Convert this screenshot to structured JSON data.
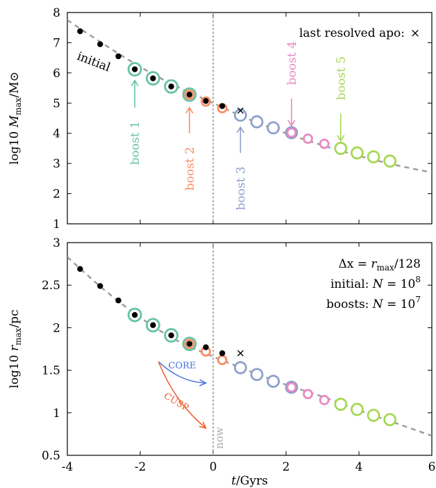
{
  "chart_data": [
    {
      "type": "scatter",
      "panel": "top",
      "xlim": [
        -4,
        6
      ],
      "ylim": [
        1,
        8
      ],
      "yticks": [
        "1",
        "2",
        "3",
        "4",
        "5",
        "6",
        "7",
        "8"
      ],
      "ylabel": "log10 Mmax/M⊙",
      "ylabel_parts": {
        "prefix": "log10 ",
        "var": "M",
        "sub": "max",
        "suffix": "/M⊙"
      },
      "now_x": 0,
      "fit_curve": [
        [
          -4.0,
          7.75
        ],
        [
          -3.0,
          6.95
        ],
        [
          -2.0,
          6.2
        ],
        [
          -1.0,
          5.55
        ],
        [
          0.0,
          5.0
        ],
        [
          1.0,
          4.45
        ],
        [
          2.0,
          4.0
        ],
        [
          3.0,
          3.6
        ],
        [
          4.0,
          3.25
        ],
        [
          5.0,
          2.95
        ],
        [
          6.0,
          2.7
        ]
      ],
      "initial": [
        [
          -3.65,
          7.38
        ],
        [
          -3.1,
          6.95
        ],
        [
          -2.6,
          6.55
        ],
        [
          -2.15,
          6.12
        ],
        [
          -1.65,
          5.82
        ],
        [
          -1.15,
          5.55
        ],
        [
          -0.65,
          5.28
        ],
        [
          -0.2,
          5.07
        ],
        [
          0.25,
          4.9
        ]
      ],
      "last_resolved_apo": [
        0.75,
        4.75
      ],
      "boosts": [
        {
          "name": "boost 1",
          "color": "#66c2a5",
          "ring": 9,
          "points": [
            [
              -2.15,
              6.12
            ],
            [
              -1.65,
              5.82
            ],
            [
              -1.15,
              5.55
            ],
            [
              -0.65,
              5.28
            ]
          ]
        },
        {
          "name": "boost 2",
          "color": "#fc8d62",
          "ring": 6,
          "points": [
            [
              -0.65,
              5.28
            ],
            [
              -0.2,
              5.05
            ],
            [
              0.25,
              4.83
            ],
            [
              0.75,
              4.6
            ]
          ]
        },
        {
          "name": "boost 3",
          "color": "#8da0cb",
          "ring": 8,
          "points": [
            [
              0.75,
              4.6
            ],
            [
              1.2,
              4.38
            ],
            [
              1.65,
              4.18
            ],
            [
              2.15,
              4.02
            ]
          ]
        },
        {
          "name": "boost 4",
          "color": "#e78ac3",
          "ring": 6,
          "points": [
            [
              2.15,
              4.02
            ],
            [
              2.6,
              3.82
            ],
            [
              3.05,
              3.65
            ],
            [
              3.5,
              3.5
            ]
          ]
        },
        {
          "name": "boost 5",
          "color": "#a6d854",
          "ring": 8,
          "points": [
            [
              3.5,
              3.5
            ],
            [
              3.95,
              3.35
            ],
            [
              4.4,
              3.22
            ],
            [
              4.85,
              3.08
            ]
          ]
        }
      ],
      "annotations": {
        "legend_text": "last resolved apo:",
        "legend_marker": "×",
        "initial_label": "initial",
        "boost_labels": [
          {
            "text": "boost 1",
            "color": "#66c2a5",
            "x": -2.15,
            "arrow_from": 4.85,
            "arrow_to": 5.75
          },
          {
            "text": "boost 2",
            "color": "#fc8d62",
            "x": -0.65,
            "arrow_from": 4.0,
            "arrow_to": 4.85
          },
          {
            "text": "boost 3",
            "color": "#8da0cb",
            "x": 0.75,
            "arrow_from": 3.35,
            "arrow_to": 4.2
          },
          {
            "text": "boost 4",
            "color": "#e78ac3",
            "x": 2.15,
            "arrow_from": 5.15,
            "arrow_to": 4.25
          },
          {
            "text": "boost 5",
            "color": "#a6d854",
            "x": 3.5,
            "arrow_from": 4.65,
            "arrow_to": 3.75
          }
        ]
      }
    },
    {
      "type": "scatter",
      "panel": "bottom",
      "xlim": [
        -4,
        6
      ],
      "ylim": [
        0.5,
        3
      ],
      "yticks": [
        "0.5",
        "1",
        "1.5",
        "2",
        "2.5",
        "3"
      ],
      "xticks": [
        "-4",
        "-2",
        "0",
        "2",
        "4",
        "6"
      ],
      "ylabel": "log10 rmax/pc",
      "ylabel_parts": {
        "prefix": "log10 ",
        "var": "r",
        "sub": "max",
        "suffix": "/pc"
      },
      "xlabel": "t/Gyrs",
      "xlabel_parts": {
        "var": "t",
        "suffix": "/Gyrs"
      },
      "now_label": "now",
      "now_x": 0,
      "fit_curve": [
        [
          -4.0,
          2.83
        ],
        [
          -3.0,
          2.45
        ],
        [
          -2.0,
          2.12
        ],
        [
          -1.0,
          1.85
        ],
        [
          0.0,
          1.66
        ],
        [
          1.0,
          1.49
        ],
        [
          2.0,
          1.33
        ],
        [
          3.0,
          1.19
        ],
        [
          4.0,
          1.03
        ],
        [
          5.0,
          0.88
        ],
        [
          6.0,
          0.73
        ]
      ],
      "initial": [
        [
          -3.65,
          2.69
        ],
        [
          -3.1,
          2.49
        ],
        [
          -2.6,
          2.32
        ],
        [
          -2.15,
          2.15
        ],
        [
          -1.65,
          2.03
        ],
        [
          -1.15,
          1.91
        ],
        [
          -0.65,
          1.81
        ],
        [
          -0.2,
          1.77
        ],
        [
          0.25,
          1.7
        ]
      ],
      "last_resolved_apo": [
        0.75,
        1.7
      ],
      "boosts": [
        {
          "name": "boost 1",
          "color": "#66c2a5",
          "ring": 9,
          "points": [
            [
              -2.15,
              2.15
            ],
            [
              -1.65,
              2.03
            ],
            [
              -1.15,
              1.91
            ],
            [
              -0.65,
              1.81
            ]
          ]
        },
        {
          "name": "boost 2",
          "color": "#fc8d62",
          "ring": 6,
          "points": [
            [
              -0.65,
              1.81
            ],
            [
              -0.2,
              1.72
            ],
            [
              0.25,
              1.62
            ],
            [
              0.75,
              1.53
            ]
          ]
        },
        {
          "name": "boost 3",
          "color": "#8da0cb",
          "ring": 8,
          "points": [
            [
              0.75,
              1.53
            ],
            [
              1.2,
              1.45
            ],
            [
              1.65,
              1.37
            ],
            [
              2.15,
              1.3
            ]
          ]
        },
        {
          "name": "boost 4",
          "color": "#e78ac3",
          "ring": 6,
          "points": [
            [
              2.15,
              1.3
            ],
            [
              2.6,
              1.22
            ],
            [
              3.05,
              1.15
            ],
            [
              3.5,
              1.1
            ]
          ]
        },
        {
          "name": "boost 5",
          "color": "#a6d854",
          "ring": 8,
          "points": [
            [
              3.5,
              1.1
            ],
            [
              3.95,
              1.04
            ],
            [
              4.4,
              0.97
            ],
            [
              4.85,
              0.92
            ]
          ]
        }
      ],
      "annotations": {
        "resolution": {
          "prefix": "Δx = ",
          "var": "r",
          "sub": "max",
          "suffix": "/128"
        },
        "initial_N": {
          "prefix": "initial:  ",
          "var": "N",
          "eq": " = 10",
          "exp": "8"
        },
        "boosts_N": {
          "prefix": "boosts:  ",
          "var": "N",
          "eq": " = 10",
          "exp": "7"
        },
        "core_label": "CORE",
        "core_color": "#4a6fe0",
        "cusp_label": "CUSP",
        "cusp_color": "#f05a28",
        "core_arrow": {
          "start": [
            -1.5,
            1.6
          ],
          "ctrl": [
            -0.9,
            1.36
          ],
          "end": [
            -0.2,
            1.35
          ]
        },
        "cusp_arrow": {
          "start": [
            -1.5,
            1.6
          ],
          "ctrl": [
            -1.05,
            1.12
          ],
          "end": [
            -0.2,
            0.82
          ]
        },
        "core_text_pos": [
          -0.85,
          1.52
        ],
        "cusp_text_pos": [
          -1.05,
          1.1
        ]
      }
    }
  ]
}
